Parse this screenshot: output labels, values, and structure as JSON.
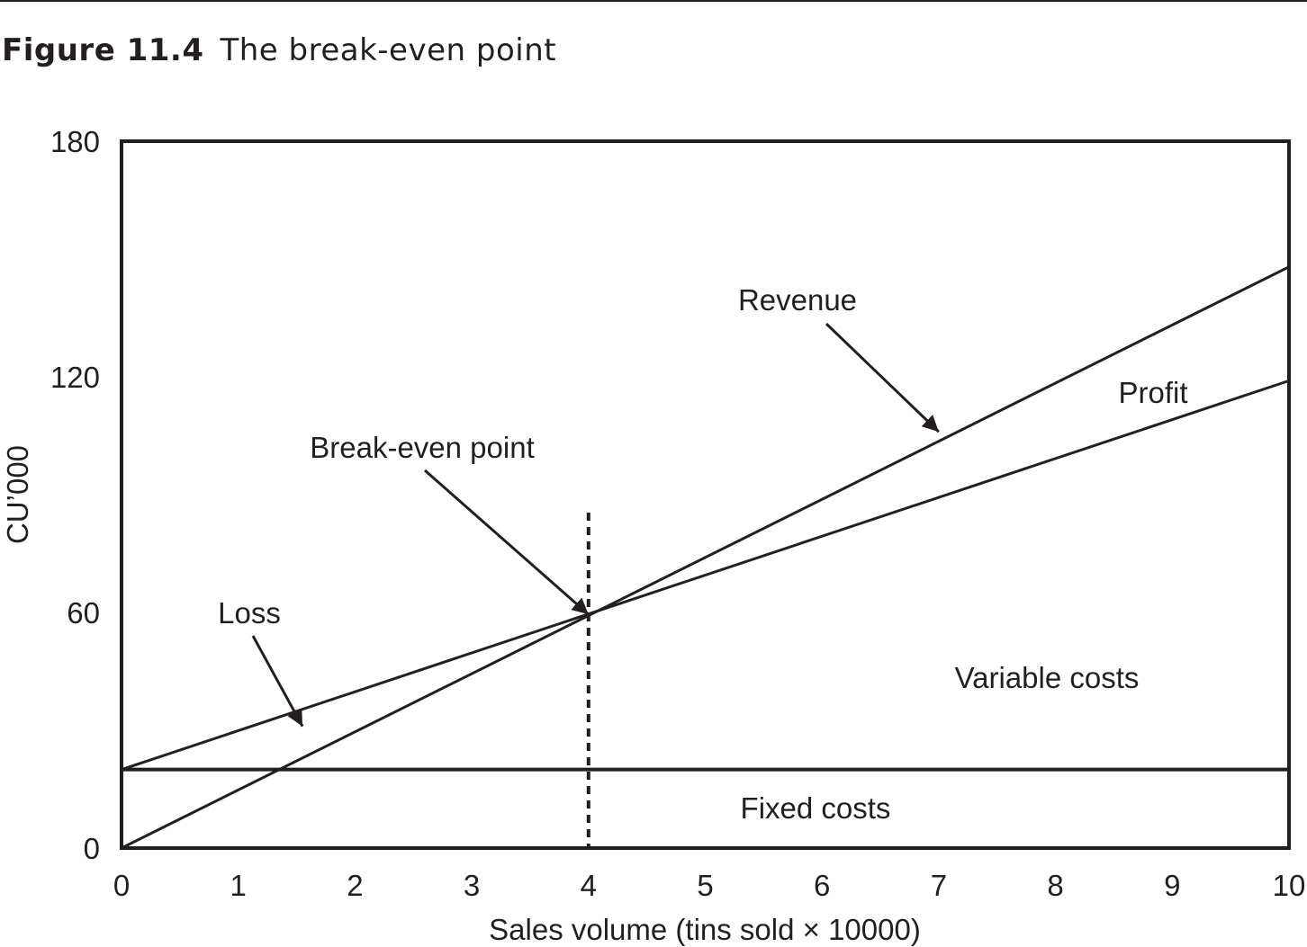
{
  "figure": {
    "number": "Figure 11.4",
    "title": "The break-even point"
  },
  "chart_data": {
    "type": "line",
    "xlabel": "Sales volume (tins sold × 10000)",
    "ylabel": "CU’000",
    "xlim": [
      0,
      10
    ],
    "ylim": [
      0,
      180
    ],
    "x_ticks": [
      0,
      1,
      2,
      3,
      4,
      5,
      6,
      7,
      8,
      9,
      10
    ],
    "y_ticks": [
      0,
      60,
      120,
      180
    ],
    "grid": false,
    "series": [
      {
        "name": "Revenue",
        "x": [
          0,
          10
        ],
        "y": [
          0,
          148
        ]
      },
      {
        "name": "Fixed costs",
        "x": [
          0,
          10
        ],
        "y": [
          20,
          20
        ]
      },
      {
        "x": [
          0,
          10
        ],
        "y": [
          20,
          119
        ]
      }
    ],
    "break_even": {
      "x": 4,
      "y": 59.5
    },
    "region_labels": [
      "Fixed costs",
      "Variable costs"
    ],
    "annotations": [
      {
        "text": "Revenue",
        "points_to": [
          7,
          106
        ]
      },
      {
        "text": "Profit"
      },
      {
        "text": "Break-even point",
        "points_to": [
          4,
          59.5
        ]
      },
      {
        "text": "Loss",
        "points_to": [
          1.55,
          31
        ]
      }
    ]
  }
}
